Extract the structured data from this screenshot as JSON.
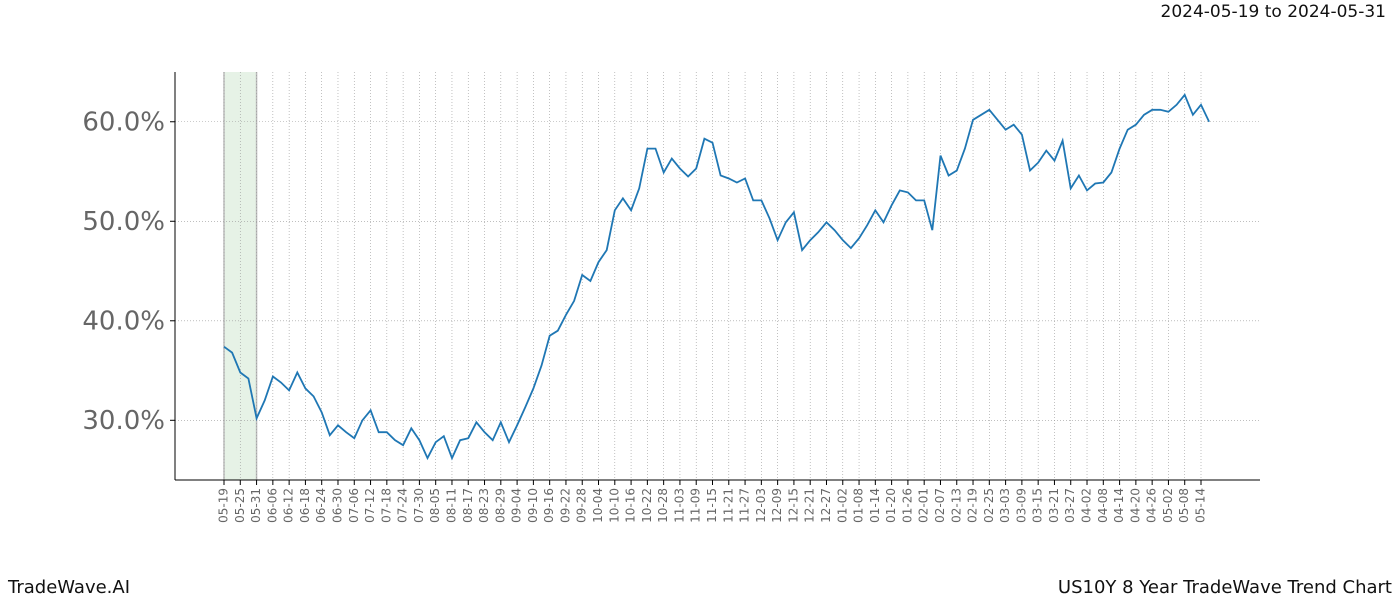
{
  "chart_data": {
    "type": "line",
    "title": "2024-05-19 to 2024-05-31",
    "footer_left": "TradeWave.AI",
    "footer_right": "US10Y 8 Year TradeWave Trend Chart",
    "highlight_range": [
      "05-19",
      "05-31"
    ],
    "highlight_color": "#e6f2e6",
    "grid": true,
    "categories": [
      "05-19",
      null,
      "05-25",
      null,
      "05-31",
      null,
      "06-06",
      null,
      "06-12",
      null,
      "06-18",
      null,
      "06-24",
      null,
      "06-30",
      null,
      "07-06",
      null,
      "07-12",
      null,
      "07-18",
      null,
      "07-24",
      null,
      "07-30",
      null,
      "08-05",
      null,
      "08-11",
      null,
      "08-17",
      null,
      "08-23",
      null,
      "08-29",
      null,
      "09-04",
      null,
      "09-10",
      null,
      "09-16",
      null,
      "09-22",
      null,
      "09-28",
      null,
      "10-04",
      null,
      "10-10",
      null,
      "10-16",
      null,
      "10-22",
      null,
      "10-28",
      null,
      "11-03",
      null,
      "11-09",
      null,
      "11-15",
      null,
      "11-21",
      null,
      "11-27",
      null,
      "12-03",
      null,
      "12-09",
      null,
      "12-15",
      null,
      "12-21",
      null,
      "12-27",
      null,
      "01-02",
      null,
      "01-08",
      null,
      "01-14",
      null,
      "01-20",
      null,
      "01-26",
      null,
      "02-01",
      null,
      "02-07",
      null,
      "02-13",
      null,
      "02-19",
      null,
      "02-25",
      null,
      "03-03",
      null,
      "03-09",
      null,
      "03-15",
      null,
      "03-21",
      null,
      "03-27",
      null,
      "04-02",
      null,
      "04-08",
      null,
      "04-14",
      null,
      "04-20",
      null,
      "04-26",
      null,
      "05-02",
      null,
      "05-08",
      null,
      "05-14",
      null
    ],
    "series": [
      {
        "name": "US10Y",
        "color": "#1f77b4",
        "values": [
          37.4,
          36.8,
          34.8,
          34.2,
          30.2,
          32.0,
          34.4,
          33.8,
          33.0,
          34.8,
          33.2,
          32.4,
          30.8,
          28.5,
          29.5,
          28.8,
          28.2,
          30.0,
          31.0,
          28.8,
          28.8,
          28.0,
          27.5,
          29.2,
          28.0,
          26.2,
          27.8,
          28.4,
          26.2,
          28.0,
          28.2,
          29.8,
          28.8,
          28.0,
          29.8,
          27.8,
          29.5,
          31.3,
          33.2,
          35.5,
          38.5,
          39.0,
          40.6,
          42.0,
          44.6,
          44.0,
          45.9,
          47.1,
          51.1,
          52.3,
          51.1,
          53.3,
          57.3,
          57.3,
          54.9,
          56.3,
          55.3,
          54.5,
          55.3,
          58.3,
          57.9,
          54.6,
          54.3,
          53.9,
          54.3,
          52.1,
          52.1,
          50.3,
          48.1,
          49.9,
          50.9,
          47.1,
          48.1,
          48.9,
          49.9,
          49.1,
          48.1,
          47.3,
          48.3,
          49.6,
          51.1,
          49.9,
          51.6,
          53.1,
          52.9,
          52.1,
          52.1,
          49.1,
          56.6,
          54.6,
          55.1,
          57.3,
          60.2,
          60.7,
          61.2,
          60.2,
          59.2,
          59.7,
          58.7,
          55.1,
          55.9,
          57.1,
          56.1,
          58.1,
          53.3,
          54.6,
          53.1,
          53.8,
          53.9,
          54.9,
          57.3,
          59.2,
          59.7,
          60.7,
          61.2,
          61.2,
          61.0,
          61.7,
          62.7,
          60.7,
          61.7,
          60.0
        ]
      }
    ],
    "ylim": [
      24,
      65
    ],
    "yticks": [
      {
        "value": 30,
        "label": "30.0%"
      },
      {
        "value": 40,
        "label": "40.0%"
      },
      {
        "value": 50,
        "label": "50.0%"
      },
      {
        "value": 60,
        "label": "60.0%"
      }
    ]
  }
}
